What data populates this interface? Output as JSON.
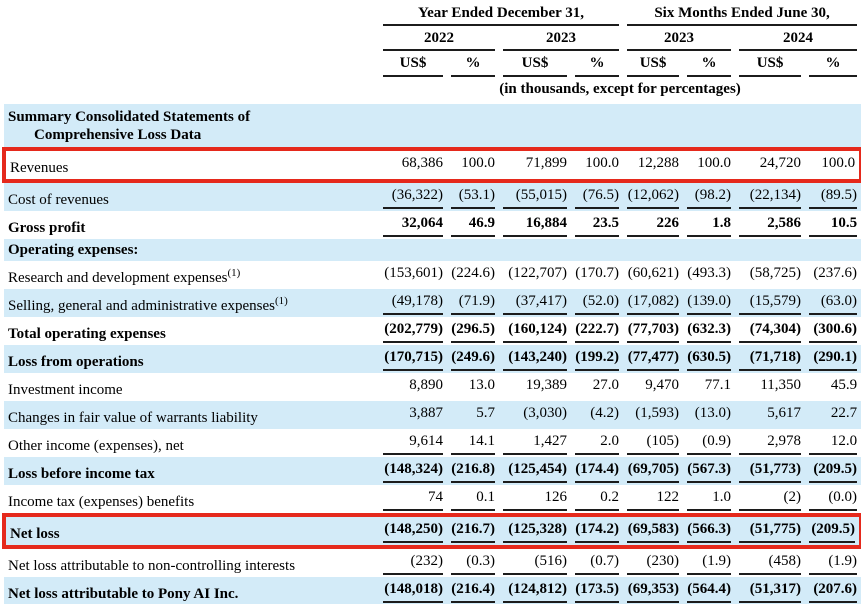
{
  "header": {
    "group1": "Year Ended December 31,",
    "group2": "Six Months Ended June 30,",
    "years": [
      "2022",
      "2023",
      "2023",
      "2024"
    ],
    "units": [
      "US$",
      "%",
      "US$",
      "%",
      "US$",
      "%",
      "US$",
      "%"
    ],
    "note": "(in thousands, except for percentages)"
  },
  "section": {
    "line1": "Summary Consolidated Statements of",
    "line2": "Comprehensive Loss Data"
  },
  "table": {
    "rows": [
      {
        "label": "Revenues",
        "bold": false,
        "shaded": false,
        "highlighted": true,
        "rule": "none",
        "values": [
          "68,386",
          "100.0",
          "71,899",
          "100.0",
          "12,288",
          "100.0",
          "24,720",
          "100.0"
        ]
      },
      {
        "label": "Cost of revenues",
        "bold": false,
        "shaded": true,
        "highlighted": false,
        "rule": "single",
        "values": [
          "(36,322)",
          "(53.1)",
          "(55,015)",
          "(76.5)",
          "(12,062)",
          "(98.2)",
          "(22,134)",
          "(89.5)"
        ]
      },
      {
        "label": "Gross profit",
        "bold": true,
        "shaded": false,
        "highlighted": false,
        "rule": "single",
        "values": [
          "32,064",
          "46.9",
          "16,884",
          "23.5",
          "226",
          "1.8",
          "2,586",
          "10.5"
        ]
      },
      {
        "label": "Operating expenses:",
        "bold": true,
        "shaded": true,
        "highlighted": false,
        "rule": "none",
        "values": [
          "",
          "",
          "",
          "",
          "",
          "",
          "",
          ""
        ]
      },
      {
        "label": "Research and development expenses",
        "footnote": "(1)",
        "bold": false,
        "shaded": false,
        "highlighted": false,
        "rule": "none",
        "values": [
          "(153,601)",
          "(224.6)",
          "(122,707)",
          "(170.7)",
          "(60,621)",
          "(493.3)",
          "(58,725)",
          "(237.6)"
        ]
      },
      {
        "label": "Selling, general and administrative expenses",
        "footnote": "(1)",
        "bold": false,
        "shaded": true,
        "highlighted": false,
        "rule": "single",
        "values": [
          "(49,178)",
          "(71.9)",
          "(37,417)",
          "(52.0)",
          "(17,082)",
          "(139.0)",
          "(15,579)",
          "(63.0)"
        ]
      },
      {
        "label": "Total operating expenses",
        "bold": true,
        "shaded": false,
        "highlighted": false,
        "rule": "single",
        "values": [
          "(202,779)",
          "(296.5)",
          "(160,124)",
          "(222.7)",
          "(77,703)",
          "(632.3)",
          "(74,304)",
          "(300.6)"
        ]
      },
      {
        "label": "Loss from operations",
        "bold": true,
        "shaded": true,
        "highlighted": false,
        "rule": "single",
        "values": [
          "(170,715)",
          "(249.6)",
          "(143,240)",
          "(199.2)",
          "(77,477)",
          "(630.5)",
          "(71,718)",
          "(290.1)"
        ]
      },
      {
        "label": "Investment income",
        "bold": false,
        "shaded": false,
        "highlighted": false,
        "rule": "none",
        "values": [
          "8,890",
          "13.0",
          "19,389",
          "27.0",
          "9,470",
          "77.1",
          "11,350",
          "45.9"
        ]
      },
      {
        "label": "Changes in fair value of warrants liability",
        "bold": false,
        "shaded": true,
        "highlighted": false,
        "rule": "none",
        "values": [
          "3,887",
          "5.7",
          "(3,030)",
          "(4.2)",
          "(1,593)",
          "(13.0)",
          "5,617",
          "22.7"
        ]
      },
      {
        "label": "Other income (expenses), net",
        "bold": false,
        "shaded": false,
        "highlighted": false,
        "rule": "single",
        "values": [
          "9,614",
          "14.1",
          "1,427",
          "2.0",
          "(105)",
          "(0.9)",
          "2,978",
          "12.0"
        ]
      },
      {
        "label": "Loss before income tax",
        "bold": true,
        "shaded": true,
        "highlighted": false,
        "rule": "single",
        "values": [
          "(148,324)",
          "(216.8)",
          "(125,454)",
          "(174.4)",
          "(69,705)",
          "(567.3)",
          "(51,773)",
          "(209.5)"
        ]
      },
      {
        "label": "Income tax (expenses) benefits",
        "bold": false,
        "shaded": false,
        "highlighted": false,
        "rule": "single",
        "values": [
          "74",
          "0.1",
          "126",
          "0.2",
          "122",
          "1.0",
          "(2)",
          "(0.0)"
        ]
      },
      {
        "label": "Net loss",
        "bold": true,
        "shaded": true,
        "highlighted": true,
        "rule": "single",
        "values": [
          "(148,250)",
          "(216.7)",
          "(125,328)",
          "(174.2)",
          "(69,583)",
          "(566.3)",
          "(51,775)",
          "(209.5)"
        ]
      },
      {
        "label": "Net loss attributable to non-controlling interests",
        "bold": false,
        "shaded": false,
        "highlighted": false,
        "rule": "single",
        "values": [
          "(232)",
          "(0.3)",
          "(516)",
          "(0.7)",
          "(230)",
          "(1.9)",
          "(458)",
          "(1.9)"
        ]
      },
      {
        "label": "Net loss attributable to Pony AI Inc.",
        "bold": true,
        "shaded": true,
        "highlighted": false,
        "rule": "double",
        "values": [
          "(148,018)",
          "(216.4)",
          "(124,812)",
          "(173.5)",
          "(69,353)",
          "(564.4)",
          "(51,317)",
          "(207.6)"
        ]
      }
    ]
  },
  "colors": {
    "shade": "#d3ebf8",
    "highlight": "#e5291c",
    "rule": "#1c1c1c"
  }
}
